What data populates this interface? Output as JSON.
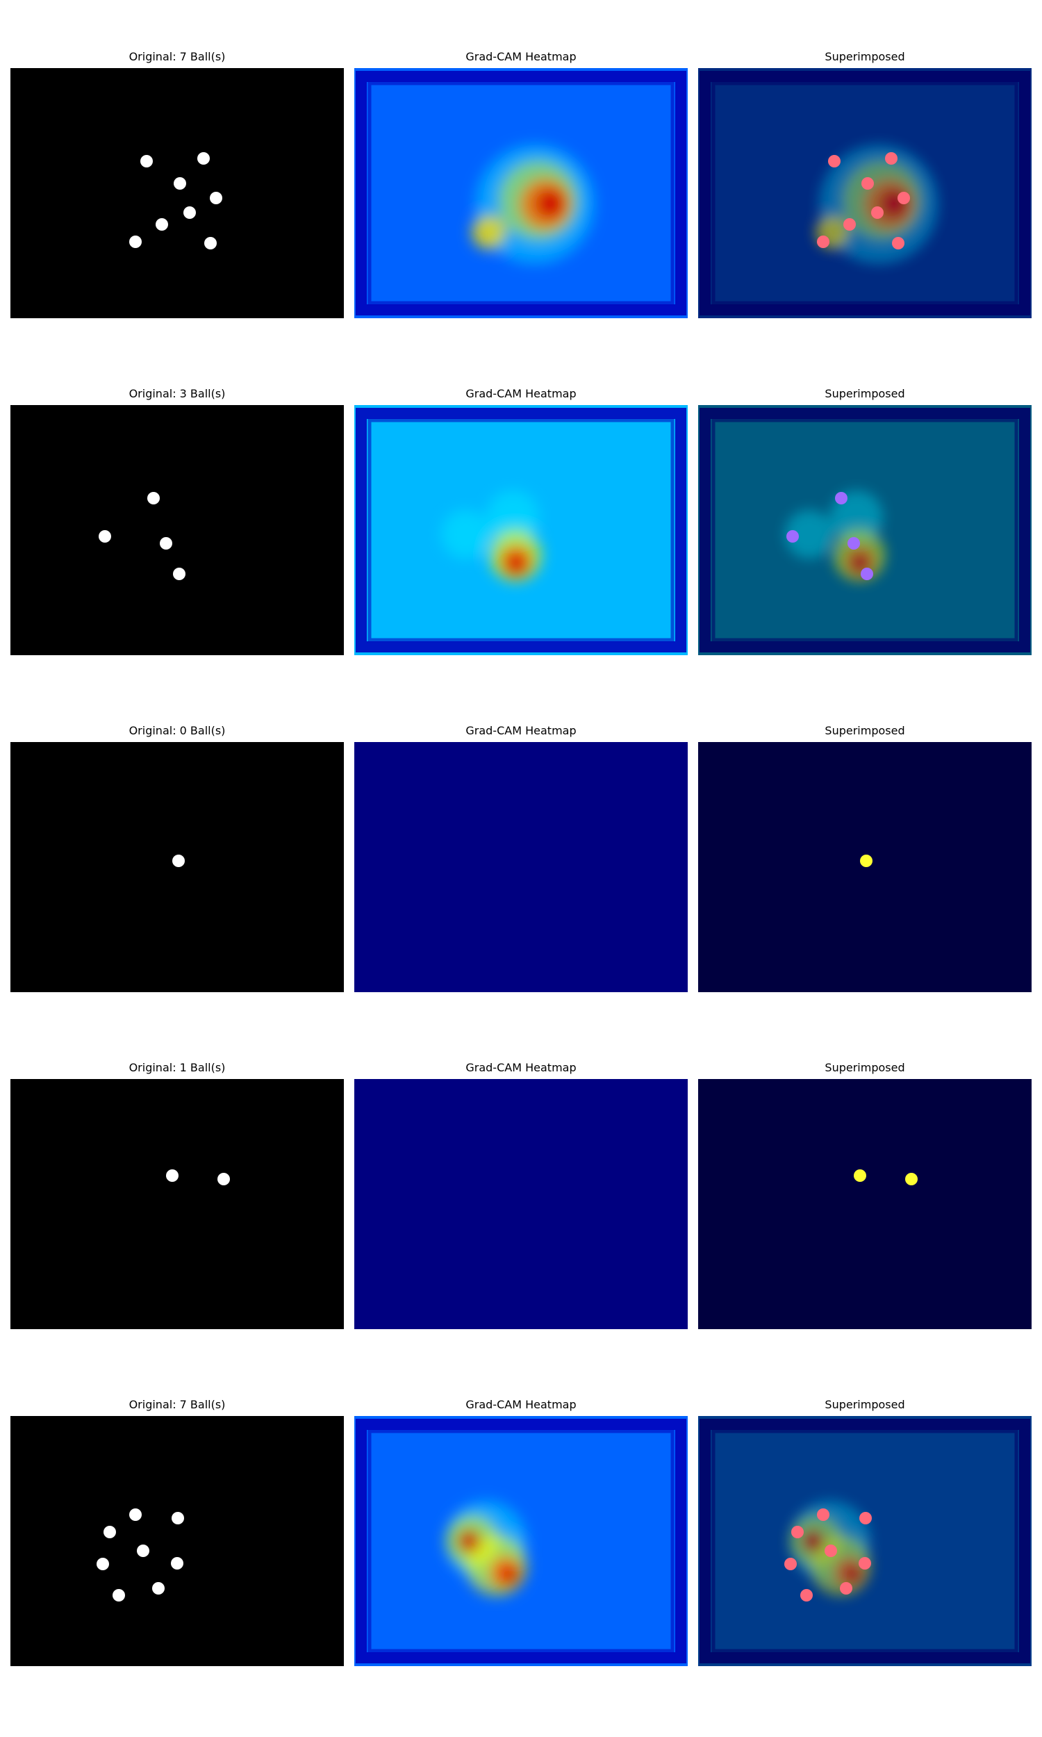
{
  "figure": {
    "rows": [
      {
        "original_title": "Original: 7 Ball(s)",
        "heatmap_title": "Grad-CAM Heatmap",
        "superimposed_title": "Superimposed",
        "heatmap_variant": "active",
        "heatmap_base_color": "#0062ff",
        "superimposed_base_color": "#002a80",
        "ball_color": "#ffffff",
        "overlay_ball_color": "#ff6a7a"
      },
      {
        "original_title": "Original: 3 Ball(s)",
        "heatmap_title": "Grad-CAM Heatmap",
        "superimposed_title": "Superimposed",
        "heatmap_variant": "active",
        "heatmap_base_color": "#00b8ff",
        "superimposed_base_color": "#005a80",
        "ball_color": "#ffffff",
        "overlay_ball_color": "#9f6cff"
      },
      {
        "original_title": "Original: 0 Ball(s)",
        "heatmap_title": "Grad-CAM Heatmap",
        "superimposed_title": "Superimposed",
        "heatmap_variant": "flat",
        "heatmap_base_color": "#000080",
        "superimposed_base_color": "#00003f",
        "ball_color": "#ffffff",
        "overlay_ball_color": "#ffff33"
      },
      {
        "original_title": "Original: 1 Ball(s)",
        "heatmap_title": "Grad-CAM Heatmap",
        "superimposed_title": "Superimposed",
        "heatmap_variant": "flat",
        "heatmap_base_color": "#000080",
        "superimposed_base_color": "#00003f",
        "ball_color": "#ffffff",
        "overlay_ball_color": "#ffff33"
      },
      {
        "original_title": "Original: 7 Ball(s)",
        "heatmap_title": "Grad-CAM Heatmap",
        "superimposed_title": "Superimposed",
        "heatmap_variant": "active",
        "heatmap_base_color": "#0064ff",
        "superimposed_base_color": "#003b8a",
        "ball_color": "#ffffff",
        "overlay_ball_color": "#ff6a7a"
      }
    ]
  }
}
